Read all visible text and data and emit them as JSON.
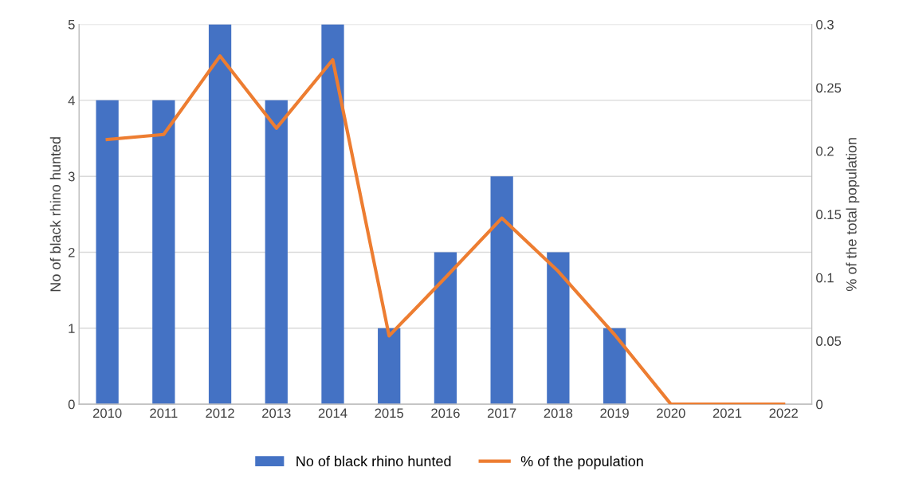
{
  "chart_data": {
    "type": "bar",
    "categories": [
      "2010",
      "2011",
      "2012",
      "2013",
      "2014",
      "2015",
      "2016",
      "2017",
      "2018",
      "2019",
      "2020",
      "2021",
      "2022"
    ],
    "series": [
      {
        "name": "No of black rhino hunted",
        "color": "#4472c4",
        "values": [
          4,
          4,
          5,
          4,
          5,
          1,
          2,
          3,
          2,
          1,
          0,
          0,
          0
        ]
      },
      {
        "name": "% of the population",
        "type": "line",
        "axis": "y2",
        "color": "#ed7d31",
        "values": [
          0.209,
          0.213,
          0.275,
          0.218,
          0.272,
          0.054,
          0.1,
          0.147,
          0.105,
          0.055,
          0,
          0,
          0
        ]
      }
    ],
    "ylabel": "No of black rhino hunted",
    "y2label": "% of the total population",
    "ylim": [
      0,
      5
    ],
    "yticks": [
      0,
      1,
      2,
      3,
      4,
      5
    ],
    "y2lim": [
      0,
      0.3
    ],
    "y2ticks": [
      0,
      0.05,
      0.1,
      0.15,
      0.2,
      0.25,
      0.3
    ],
    "grid": "y",
    "legend": "bottom",
    "marker": "none"
  }
}
